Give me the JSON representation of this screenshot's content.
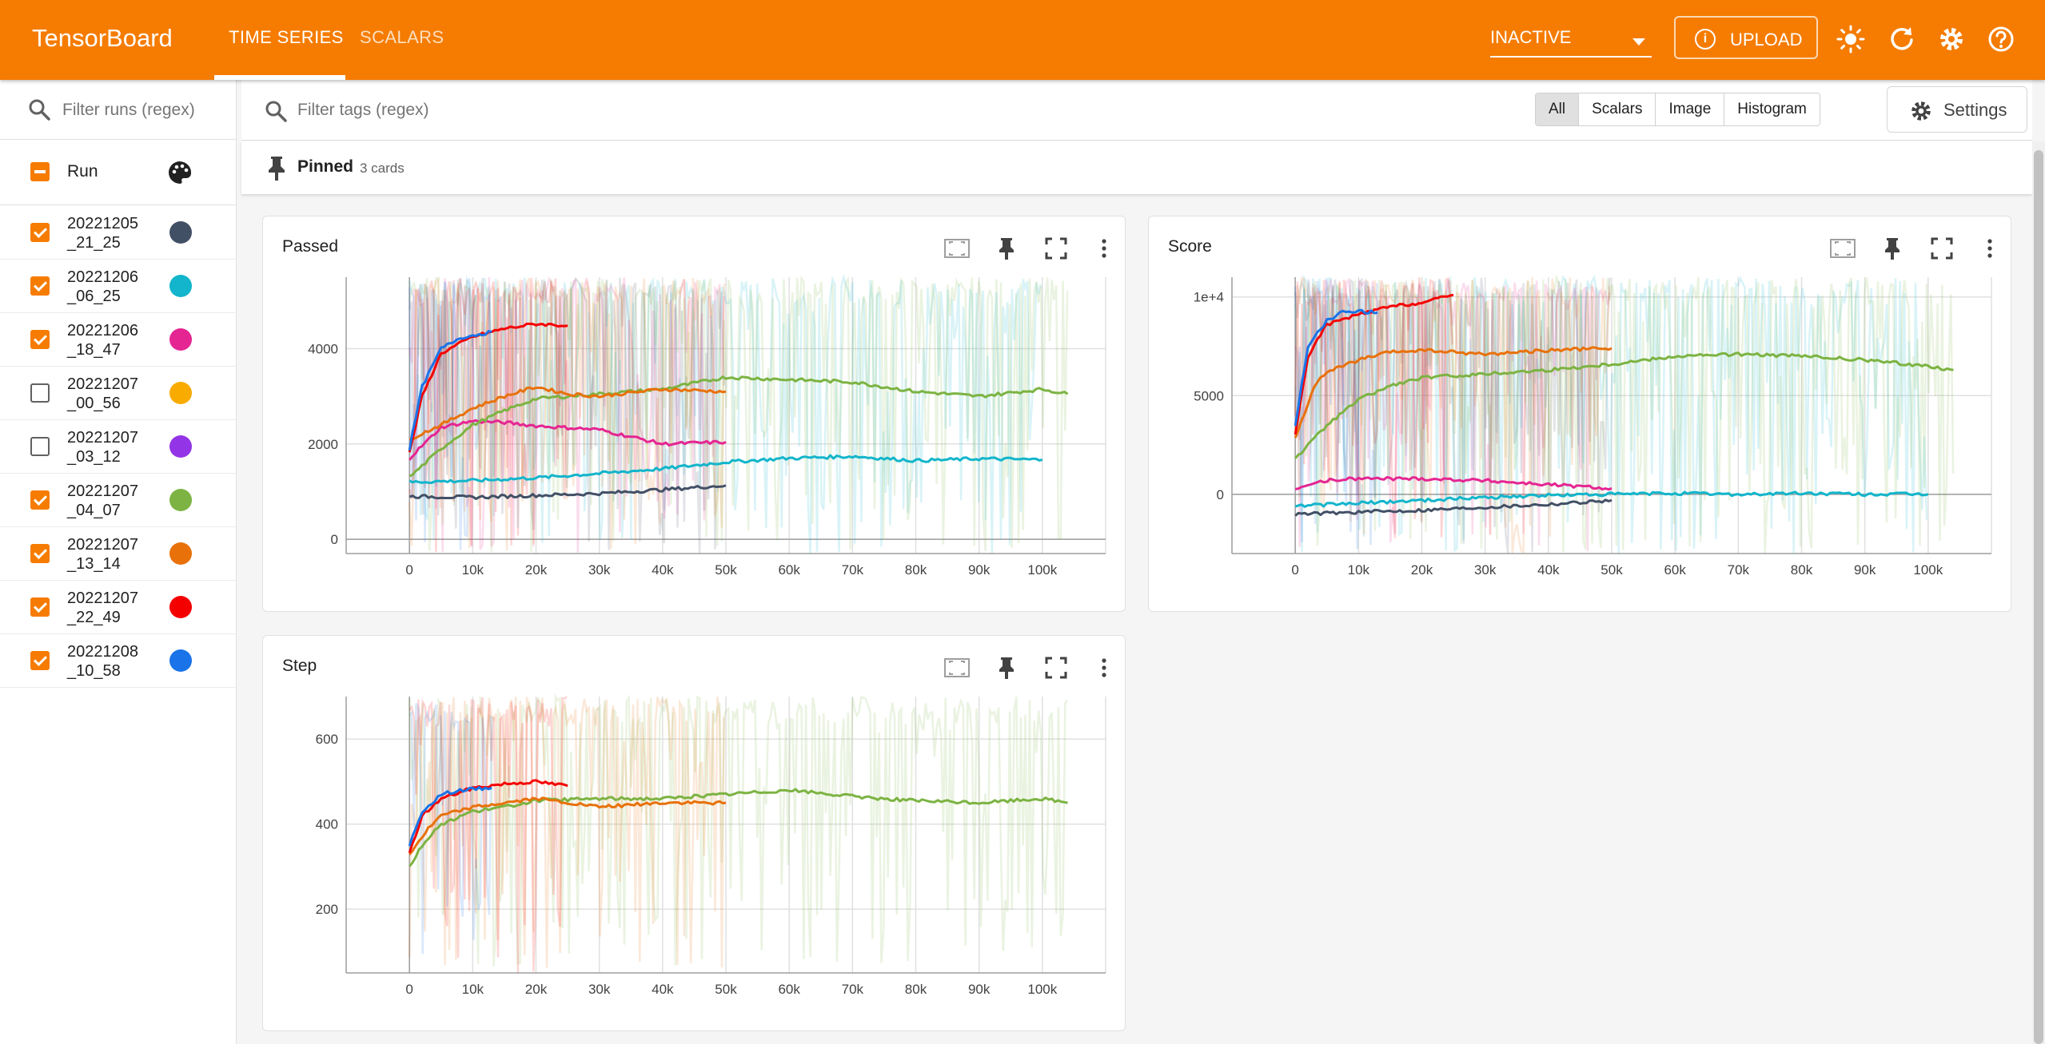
{
  "header": {
    "brand": "TensorBoard",
    "tabs": [
      {
        "label": "TIME SERIES",
        "active": true
      },
      {
        "label": "SCALARS",
        "active": false
      }
    ],
    "status_select": "INACTIVE",
    "upload_label": "UPLOAD",
    "icons": [
      "brightness-icon",
      "refresh-icon",
      "settings-gear-icon",
      "help-icon"
    ],
    "accent_color": "#f57c00"
  },
  "sidebar": {
    "filter_placeholder": "Filter runs (regex)",
    "run_header": "Run",
    "runs": [
      {
        "name": "20221205_21_25",
        "line1": "20221205",
        "line2": "_21_25",
        "checked": true,
        "color": "#425066"
      },
      {
        "name": "20221206_06_25",
        "line1": "20221206",
        "line2": "_06_25",
        "checked": true,
        "color": "#12b5cb"
      },
      {
        "name": "20221206_18_47",
        "line1": "20221206",
        "line2": "_18_47",
        "checked": true,
        "color": "#e52592"
      },
      {
        "name": "20221207_00_56",
        "line1": "20221207",
        "line2": "_00_56",
        "checked": false,
        "color": "#f9ab00"
      },
      {
        "name": "20221207_03_12",
        "line1": "20221207",
        "line2": "_03_12",
        "checked": false,
        "color": "#9334e6"
      },
      {
        "name": "20221207_04_07",
        "line1": "20221207",
        "line2": "_04_07",
        "checked": true,
        "color": "#7cb342"
      },
      {
        "name": "20221207_13_14",
        "line1": "20221207",
        "line2": "_13_14",
        "checked": true,
        "color": "#e8710a"
      },
      {
        "name": "20221207_22_49",
        "line1": "20221207",
        "line2": "_22_49",
        "checked": true,
        "color": "#f50000"
      },
      {
        "name": "20221208_10_58",
        "line1": "20221208",
        "line2": "_10_58",
        "checked": true,
        "color": "#1a73e8"
      }
    ]
  },
  "toolbar": {
    "filter_placeholder": "Filter tags (regex)",
    "types": [
      "All",
      "Scalars",
      "Image",
      "Histogram"
    ],
    "selected_type": "All",
    "settings_label": "Settings"
  },
  "pinned": {
    "title": "Pinned",
    "count": "3 cards"
  },
  "chart_data": [
    {
      "type": "line",
      "title": "Passed",
      "xlim": [
        -10000,
        110000
      ],
      "ylim": [
        -300,
        5500
      ],
      "x_ticks": [
        "0",
        "10k",
        "20k",
        "30k",
        "40k",
        "50k",
        "60k",
        "70k",
        "80k",
        "90k",
        "100k"
      ],
      "y_ticks": [
        {
          "v": 0,
          "label": "0"
        },
        {
          "v": 2000,
          "label": "2000"
        },
        {
          "v": 4000,
          "label": "4000"
        }
      ],
      "series": [
        {
          "run": "20221205_21_25",
          "color": "#425066",
          "x": [
            0,
            10000,
            20000,
            30000,
            40000,
            50000
          ],
          "y": [
            900,
            880,
            920,
            960,
            1040,
            1130
          ]
        },
        {
          "run": "20221206_06_25",
          "color": "#12b5cb",
          "x": [
            0,
            10000,
            20000,
            30000,
            40000,
            50000,
            60000,
            70000,
            80000,
            90000,
            100000
          ],
          "y": [
            1200,
            1230,
            1290,
            1380,
            1480,
            1620,
            1700,
            1740,
            1650,
            1690,
            1670
          ]
        },
        {
          "run": "20221206_18_47",
          "color": "#e52592",
          "x": [
            0,
            5000,
            10000,
            15000,
            20000,
            30000,
            40000,
            50000
          ],
          "y": [
            1700,
            2350,
            2480,
            2450,
            2380,
            2300,
            2000,
            2040
          ]
        },
        {
          "run": "20221207_04_07",
          "color": "#7cb342",
          "x": [
            0,
            5000,
            10000,
            15000,
            20000,
            30000,
            40000,
            50000,
            60000,
            70000,
            80000,
            90000,
            100000,
            104000
          ],
          "y": [
            1300,
            1900,
            2400,
            2700,
            2950,
            3050,
            3150,
            3400,
            3350,
            3300,
            3100,
            3000,
            3150,
            3050
          ]
        },
        {
          "run": "20221207_13_14",
          "color": "#e8710a",
          "x": [
            0,
            5000,
            10000,
            15000,
            20000,
            25000,
            30000,
            40000,
            50000
          ],
          "y": [
            2100,
            2400,
            2750,
            3000,
            3200,
            3050,
            3000,
            3150,
            3100
          ]
        },
        {
          "run": "20221207_22_49",
          "color": "#f50000",
          "x": [
            0,
            2000,
            5000,
            10000,
            15000,
            20000,
            25000
          ],
          "y": [
            1800,
            3000,
            3900,
            4250,
            4420,
            4520,
            4480
          ]
        },
        {
          "run": "20221208_10_58",
          "color": "#1a73e8",
          "x": [
            0,
            2000,
            5000,
            8000,
            13000
          ],
          "y": [
            1900,
            3200,
            4000,
            4230,
            4350
          ]
        }
      ]
    },
    {
      "type": "line",
      "title": "Score",
      "xlim": [
        -10000,
        110000
      ],
      "ylim": [
        -3000,
        11000
      ],
      "x_ticks": [
        "0",
        "10k",
        "20k",
        "30k",
        "40k",
        "50k",
        "60k",
        "70k",
        "80k",
        "90k",
        "100k"
      ],
      "y_ticks": [
        {
          "v": 0,
          "label": "0"
        },
        {
          "v": 5000,
          "label": "5000"
        },
        {
          "v": 10000,
          "label": "1e+4"
        }
      ],
      "series": [
        {
          "run": "20221205_21_25",
          "color": "#425066",
          "x": [
            0,
            10000,
            20000,
            30000,
            40000,
            50000
          ],
          "y": [
            -1000,
            -900,
            -800,
            -650,
            -500,
            -300
          ]
        },
        {
          "run": "20221206_06_25",
          "color": "#12b5cb",
          "x": [
            0,
            10000,
            20000,
            30000,
            40000,
            50000,
            60000,
            70000,
            80000,
            90000,
            100000
          ],
          "y": [
            -600,
            -450,
            -300,
            -150,
            -50,
            0,
            50,
            0,
            50,
            0,
            0
          ]
        },
        {
          "run": "20221206_18_47",
          "color": "#e52592",
          "x": [
            0,
            5000,
            10000,
            20000,
            30000,
            40000,
            50000
          ],
          "y": [
            300,
            700,
            800,
            800,
            700,
            500,
            300
          ]
        },
        {
          "run": "20221207_04_07",
          "color": "#7cb342",
          "x": [
            0,
            5000,
            10000,
            15000,
            20000,
            30000,
            40000,
            50000,
            60000,
            70000,
            80000,
            90000,
            100000,
            104000
          ],
          "y": [
            1800,
            3500,
            4800,
            5500,
            5900,
            6100,
            6300,
            6600,
            7000,
            7100,
            7000,
            6800,
            6500,
            6300
          ]
        },
        {
          "run": "20221207_13_14",
          "color": "#e8710a",
          "x": [
            0,
            3000,
            5000,
            10000,
            15000,
            20000,
            30000,
            40000,
            50000
          ],
          "y": [
            2800,
            5500,
            6200,
            6800,
            7200,
            7300,
            7100,
            7300,
            7400
          ]
        },
        {
          "run": "20221207_22_49",
          "color": "#f50000",
          "x": [
            0,
            2000,
            5000,
            10000,
            15000,
            20000,
            25000
          ],
          "y": [
            3000,
            7000,
            8600,
            9100,
            9500,
            9700,
            10100
          ]
        },
        {
          "run": "20221208_10_58",
          "color": "#1a73e8",
          "x": [
            0,
            2000,
            5000,
            8000,
            13000
          ],
          "y": [
            3500,
            7500,
            8800,
            9300,
            9200
          ]
        }
      ]
    },
    {
      "type": "line",
      "title": "Step",
      "xlim": [
        -10000,
        110000
      ],
      "ylim": [
        50,
        700
      ],
      "x_ticks": [
        "0",
        "10k",
        "20k",
        "30k",
        "40k",
        "50k",
        "60k",
        "70k",
        "80k",
        "90k",
        "100k"
      ],
      "y_ticks": [
        {
          "v": 200,
          "label": "200"
        },
        {
          "v": 400,
          "label": "400"
        },
        {
          "v": 600,
          "label": "600"
        }
      ],
      "series": [
        {
          "run": "20221207_04_07",
          "color": "#7cb342",
          "x": [
            0,
            2000,
            5000,
            10000,
            15000,
            20000,
            30000,
            40000,
            50000,
            60000,
            70000,
            80000,
            90000,
            100000,
            104000
          ],
          "y": [
            300,
            350,
            400,
            430,
            440,
            455,
            460,
            460,
            470,
            480,
            465,
            455,
            450,
            460,
            450
          ]
        },
        {
          "run": "20221207_13_14",
          "color": "#e8710a",
          "x": [
            0,
            3000,
            5000,
            10000,
            15000,
            20000,
            30000,
            40000,
            50000
          ],
          "y": [
            330,
            390,
            420,
            440,
            450,
            460,
            440,
            450,
            450
          ]
        },
        {
          "run": "20221207_22_49",
          "color": "#f50000",
          "x": [
            0,
            2000,
            5000,
            10000,
            15000,
            20000,
            25000
          ],
          "y": [
            330,
            420,
            460,
            485,
            495,
            500,
            490
          ]
        },
        {
          "run": "20221208_10_58",
          "color": "#1a73e8",
          "x": [
            0,
            2000,
            5000,
            8000,
            13000
          ],
          "y": [
            350,
            430,
            470,
            480,
            485
          ]
        }
      ]
    }
  ]
}
